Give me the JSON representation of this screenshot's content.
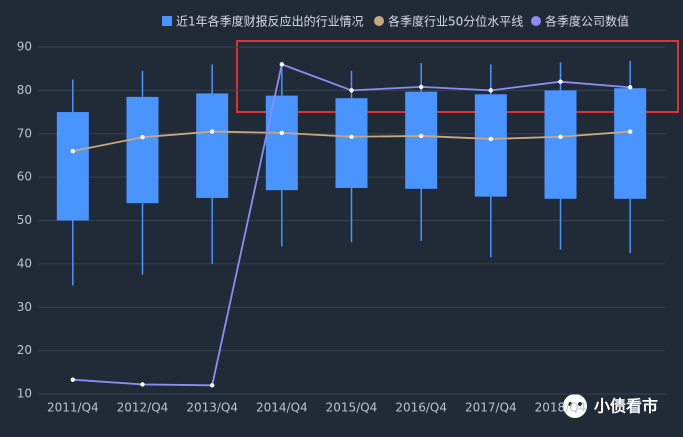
{
  "chart_data": {
    "type": "boxplot",
    "categories": [
      "2011/Q4",
      "2012/Q4",
      "2013/Q4",
      "2014/Q4",
      "2015/Q4",
      "2016/Q4",
      "2017/Q4",
      "2018/Q4",
      null
    ],
    "ylim": [
      10,
      90
    ],
    "yticks": [
      10,
      20,
      30,
      40,
      50,
      60,
      70,
      80,
      90
    ],
    "grid": true,
    "series": [
      {
        "name": "近1年各季度财报反应出的行业情况",
        "color": "#4a94ff",
        "low": [
          35,
          37.5,
          40,
          44,
          45,
          45.3,
          41.5,
          43.3,
          42.5
        ],
        "q1": [
          50,
          54,
          55.2,
          57,
          57.5,
          57.3,
          55.5,
          55,
          55
        ],
        "q3": [
          75,
          78.5,
          79.3,
          78.8,
          78.2,
          79.7,
          79.1,
          80,
          80.5
        ],
        "high": [
          82.5,
          84.5,
          86,
          86,
          84.5,
          86.3,
          86,
          86.5,
          86.8
        ]
      },
      {
        "name": "各季度行业50分位水平线",
        "color": "#c9a87d",
        "values": [
          66,
          69.2,
          70.5,
          70.2,
          69.3,
          69.5,
          68.8,
          69.3,
          70.5
        ]
      },
      {
        "name": "各季度公司数值",
        "color": "#8c8cf5",
        "values": [
          13.3,
          12.2,
          12.0,
          86,
          80,
          80.8,
          80,
          82,
          80.7
        ]
      }
    ],
    "watermark": "小债看市"
  }
}
